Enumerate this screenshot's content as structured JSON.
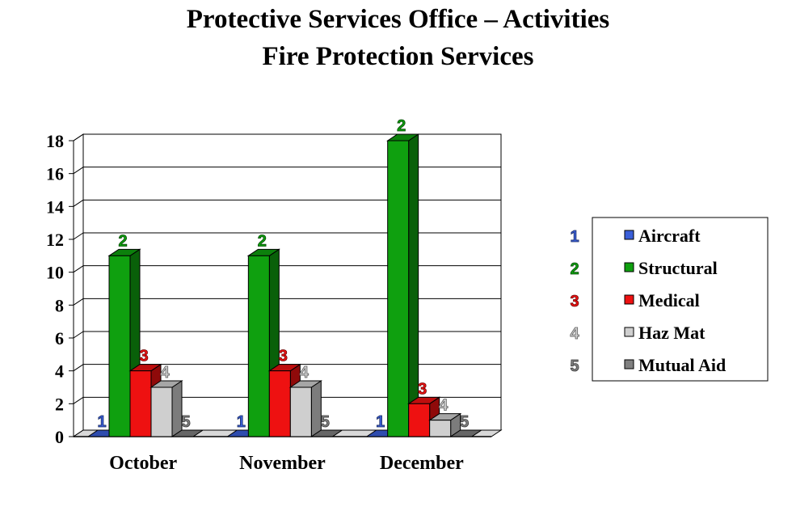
{
  "title_line1": "Protective Services Office – Activities",
  "title_line2": "Fire Protection Services",
  "chart_data": {
    "type": "bar",
    "categories": [
      "October",
      "November",
      "December"
    ],
    "series": [
      {
        "name": "Aircraft",
        "marker": "1",
        "color": "#3a5fd9",
        "values": [
          0,
          0,
          0
        ]
      },
      {
        "name": "Structural",
        "marker": "2",
        "color": "#0fa00f",
        "values": [
          11,
          11,
          18
        ]
      },
      {
        "name": "Medical",
        "marker": "3",
        "color": "#ee1111",
        "values": [
          4,
          4,
          2
        ]
      },
      {
        "name": "Haz Mat",
        "marker": "4",
        "color": "#cfcfcf",
        "values": [
          3,
          3,
          1
        ]
      },
      {
        "name": "Mutual Aid",
        "marker": "5",
        "color": "#808080",
        "values": [
          0,
          0,
          0
        ]
      }
    ],
    "yticks": [
      "0",
      "2",
      "4",
      "6",
      "8",
      "10",
      "12",
      "14",
      "16",
      "18"
    ],
    "ylim": [
      0,
      18
    ],
    "grid": true,
    "legend_position": "right"
  }
}
